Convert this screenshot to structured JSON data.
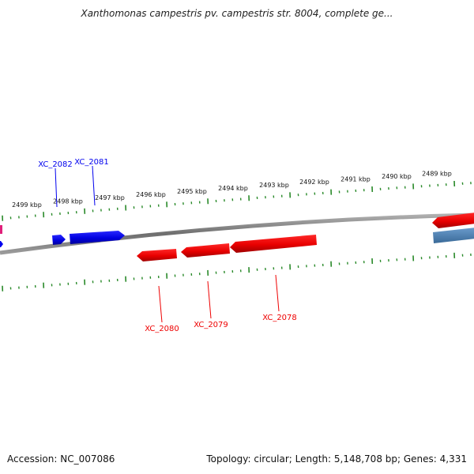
{
  "title": "Xanthomonas campestris pv. campestris str. 8004, complete ge...",
  "footer": {
    "accession": "Accession: NC_007086",
    "summary": "Topology: circular; Length: 5,148,708 bp; Genes: 4,331"
  },
  "scale_labels": [
    "2499 kbp",
    "2498 kbp",
    "2497 kbp",
    "2496 kbp",
    "2495 kbp",
    "2494 kbp",
    "2493 kbp",
    "2492 kbp",
    "2491 kbp",
    "2490 kbp",
    "2489 kbp"
  ],
  "genes": {
    "forward": [
      {
        "name": "XC_2082"
      },
      {
        "name": "XC_2081"
      }
    ],
    "reverse": [
      {
        "name": "XC_2080"
      },
      {
        "name": "XC_2079"
      },
      {
        "name": "XC_2078"
      }
    ]
  },
  "colors": {
    "forward_strand": "#0000ee",
    "reverse_strand": "#ee0000",
    "backbone": "#808080",
    "ticks": "#2a8a2a",
    "magenta_feature": "#e0207a",
    "steelblue_feature": "#4a7fb0"
  }
}
